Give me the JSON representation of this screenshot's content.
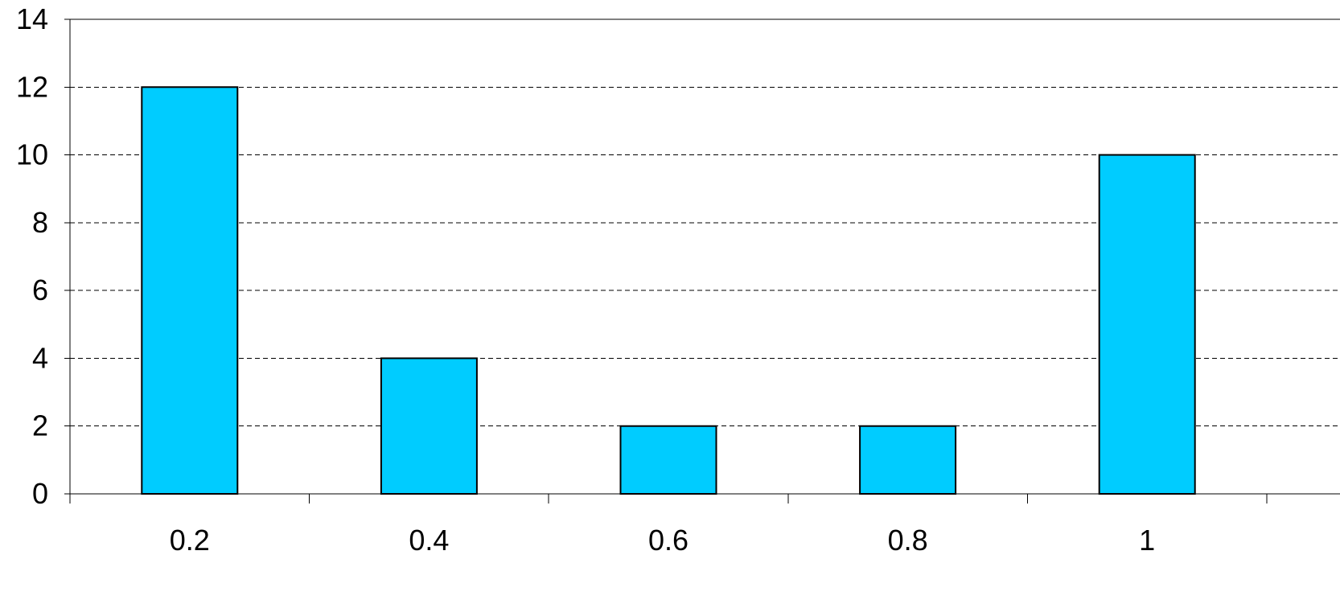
{
  "chart_data": {
    "type": "bar",
    "title": "",
    "xlabel": "",
    "ylabel": "",
    "categories": [
      "0.2",
      "0.4",
      "0.6",
      "0.8",
      "1"
    ],
    "values": [
      12,
      4,
      2,
      2,
      10
    ],
    "ylim": [
      0,
      14
    ],
    "yticks": [
      0,
      2,
      4,
      6,
      8,
      10,
      12,
      14
    ],
    "grid": "horizontal dashed",
    "colors": {
      "bar": "#00CCFF",
      "bar_edge": "#000000",
      "grid": "#000000",
      "axis": "#000000"
    }
  }
}
